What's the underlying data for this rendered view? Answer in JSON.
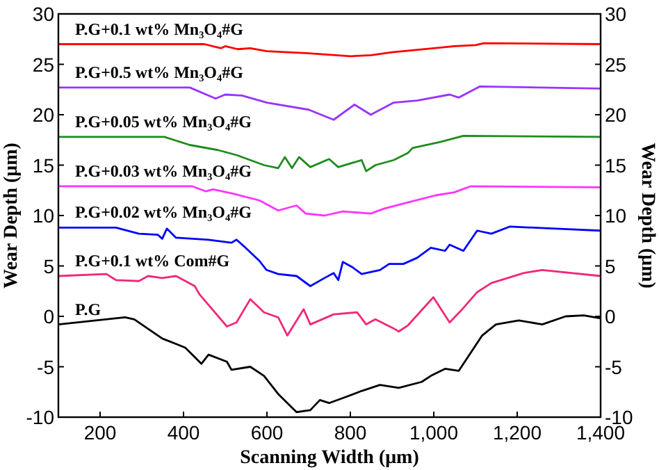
{
  "chart_data": {
    "type": "line",
    "xlabel": "Scanning Width (μm)",
    "ylabel": "Wear Depth (μm)",
    "y2label": "Wear Depth (μm)",
    "xlim": [
      100,
      1400
    ],
    "xticks": [
      200,
      400,
      600,
      800,
      {
        "value": 1000,
        "label": "1,000"
      },
      {
        "value": 1200,
        "label": "1,200"
      },
      {
        "value": 1400,
        "label": "1,400"
      }
    ],
    "ylim": [
      -10,
      30
    ],
    "yticks": [
      -10,
      -5,
      0,
      5,
      10,
      15,
      20,
      25,
      30
    ],
    "y2lim": [
      -10,
      30
    ],
    "y2ticks": [
      -10,
      -5,
      0,
      5,
      10,
      15,
      20,
      25,
      30
    ],
    "grid": false,
    "marker": "none",
    "line_style": "solid",
    "series": [
      {
        "name": "P.G+0.1 wt% Mn₃O₄#G",
        "color": "#ff0000",
        "x": [
          100,
          450,
          490,
          500,
          530,
          560,
          600,
          700,
          800,
          850,
          900,
          1000,
          1050,
          1100,
          1120,
          1400
        ],
        "values": [
          27,
          27,
          26.6,
          26.8,
          26.5,
          26.6,
          26.3,
          26.1,
          25.8,
          25.9,
          26.2,
          26.6,
          26.8,
          26.9,
          27.1,
          27
        ]
      },
      {
        "name": "P.G+0.5 wt% Mn₃O₄#G",
        "color": "#9933ff",
        "x": [
          100,
          415,
          477,
          500,
          540,
          600,
          700,
          760,
          810,
          849,
          904,
          960,
          1038,
          1060,
          1110,
          1400
        ],
        "values": [
          22.7,
          22.7,
          21.6,
          22,
          21.9,
          21.2,
          20.5,
          19.5,
          21,
          20,
          21.2,
          21.4,
          22,
          21.7,
          22.8,
          22.6
        ]
      },
      {
        "name": "P.G+0.05 wt% Mn₃O₄#G",
        "color": "#1e8c1e",
        "x": [
          100,
          354,
          415,
          482,
          527,
          593,
          627,
          643,
          660,
          677,
          704,
          749,
          771,
          827,
          838,
          860,
          904,
          938,
          949,
          1016,
          1071,
          1400
        ],
        "values": [
          17.8,
          17.8,
          17,
          16.5,
          16,
          15,
          14.7,
          15.8,
          14.7,
          15.8,
          14.8,
          15.6,
          14.8,
          15.5,
          14.4,
          15,
          15.5,
          16.2,
          16.7,
          17.3,
          17.9,
          17.8
        ]
      },
      {
        "name": "P.G+0.03 wt% Mn₃O₄#G",
        "color": "#ff33ff",
        "x": [
          100,
          421,
          454,
          471,
          516,
          582,
          627,
          671,
          693,
          738,
          782,
          849,
          882,
          938,
          1004,
          1049,
          1088,
          1400
        ],
        "values": [
          12.9,
          12.9,
          12.4,
          12.6,
          12.2,
          11.5,
          10.5,
          11,
          10.2,
          10,
          10.4,
          10.2,
          10.7,
          11.3,
          12,
          12.3,
          12.9,
          12.8
        ]
      },
      {
        "name": "P.G+0.02 wt% Mn₃O₄#G",
        "color": "#0000ff",
        "x": [
          100,
          238,
          293,
          338,
          349,
          360,
          382,
          460,
          515,
          527,
          549,
          582,
          599,
          627,
          671,
          704,
          738,
          760,
          771,
          782,
          804,
          827,
          871,
          893,
          927,
          960,
          993,
          1027,
          1038,
          1071,
          1104,
          1138,
          1182,
          1293,
          1400
        ],
        "values": [
          8.8,
          8.8,
          8.2,
          8.1,
          7.7,
          8.7,
          7.8,
          7.6,
          7.3,
          7.6,
          6.8,
          5.5,
          4.6,
          4.2,
          4,
          3,
          3.8,
          4.3,
          3.6,
          5.4,
          4.9,
          4.2,
          4.6,
          5.2,
          5.2,
          5.8,
          6.8,
          6.5,
          7.1,
          6.5,
          8.5,
          8.2,
          8.9,
          8.7,
          8.5
        ]
      },
      {
        "name": "P.G+0.1 wt% Com#G",
        "color": "#f0287a",
        "x": [
          100,
          215,
          238,
          293,
          315,
          349,
          382,
          427,
          438,
          504,
          527,
          560,
          593,
          627,
          649,
          688,
          704,
          760,
          816,
          838,
          860,
          904,
          916,
          938,
          999,
          1038,
          1066,
          1104,
          1138,
          1216,
          1260,
          1400
        ],
        "values": [
          4,
          4.2,
          3.6,
          3.5,
          4,
          3.8,
          4,
          3,
          2.2,
          -1,
          -0.6,
          1.7,
          0.4,
          -0.1,
          -1.9,
          0.7,
          -0.8,
          0.2,
          0.4,
          -0.8,
          -0.3,
          -1.2,
          -1.5,
          -0.9,
          1.9,
          -0.6,
          0.6,
          2.4,
          3.3,
          4.3,
          4.6,
          4
        ]
      },
      {
        "name": "P.G",
        "color": "#000000",
        "x": [
          100,
          260,
          282,
          349,
          404,
          443,
          460,
          504,
          515,
          560,
          593,
          627,
          671,
          704,
          727,
          749,
          782,
          827,
          871,
          916,
          971,
          993,
          1027,
          1060,
          1116,
          1149,
          1204,
          1260,
          1316,
          1360,
          1400
        ],
        "values": [
          -0.8,
          -0.1,
          -0.3,
          -2.2,
          -3.1,
          -4.7,
          -3.8,
          -4.5,
          -5.3,
          -5,
          -5.9,
          -7.7,
          -9.5,
          -9.3,
          -8.3,
          -8.6,
          -8.1,
          -7.4,
          -6.8,
          -7.1,
          -6.5,
          -5.9,
          -5.2,
          -5.4,
          -1.9,
          -0.8,
          -0.4,
          -0.8,
          0,
          0.1,
          -0.2
        ]
      }
    ]
  }
}
